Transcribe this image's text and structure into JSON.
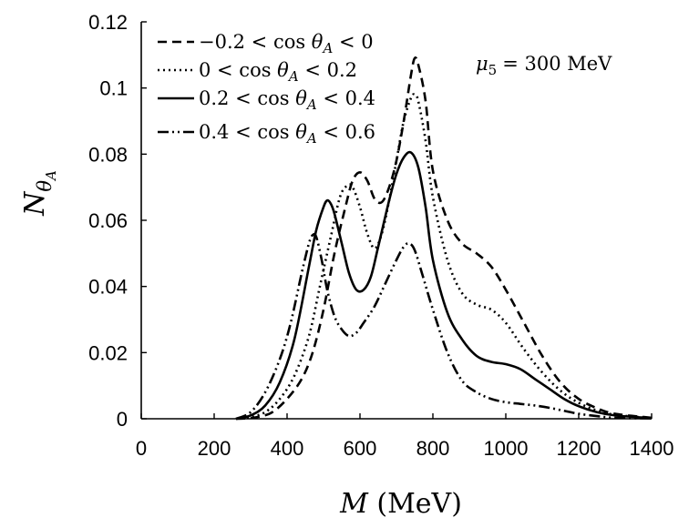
{
  "chart_data": {
    "type": "line",
    "title": "",
    "xlabel": {
      "symbol": "M",
      "unit": "(MeV)"
    },
    "ylabel": {
      "symbol": "N",
      "subscript": "θ",
      "subsubscript": "A"
    },
    "xlim": [
      0,
      1400
    ],
    "ylim": [
      0,
      0.12
    ],
    "xticks": [
      0,
      200,
      400,
      600,
      800,
      1000,
      1200,
      1400
    ],
    "xtick_labels": [
      "0",
      "200",
      "400",
      "600",
      "800",
      "1000",
      "1200",
      "1400"
    ],
    "yticks": [
      0,
      0.02,
      0.04,
      0.06,
      0.08,
      0.1,
      0.12
    ],
    "ytick_labels": [
      "0",
      "0.02",
      "0.04",
      "0.06",
      "0.08",
      "0.1",
      "0.12"
    ],
    "grid": false,
    "legend_position": "top-left",
    "annotation": {
      "symbol": "μ",
      "subscript": "5",
      "text": "= 300 MeV"
    },
    "series": [
      {
        "name": "−0.2 < cos θ_A < 0",
        "legend": {
          "pre": "−0.2 < cos ",
          "sub": "A",
          "post": " < 0"
        },
        "dash": "10,6",
        "x": [
          260,
          300,
          330,
          360,
          400,
          440,
          470,
          500,
          530,
          560,
          580,
          600,
          620,
          640,
          660,
          680,
          700,
          720,
          740,
          750,
          760,
          780,
          800,
          840,
          880,
          920,
          960,
          1000,
          1050,
          1100,
          1150,
          1200,
          1250,
          1300,
          1400
        ],
        "y": [
          0.0,
          0.0002,
          0.0008,
          0.002,
          0.006,
          0.012,
          0.02,
          0.033,
          0.05,
          0.064,
          0.072,
          0.0745,
          0.072,
          0.0665,
          0.0655,
          0.07,
          0.078,
          0.09,
          0.104,
          0.109,
          0.107,
          0.096,
          0.075,
          0.06,
          0.053,
          0.05,
          0.046,
          0.039,
          0.029,
          0.019,
          0.011,
          0.006,
          0.0032,
          0.0015,
          0.0003
        ]
      },
      {
        "name": "0 < cos θ_A < 0.2",
        "legend": {
          "pre": "0 < cos ",
          "sub": "A",
          "post": " < 0.2"
        },
        "dash": "2,4",
        "x": [
          260,
          300,
          340,
          380,
          420,
          460,
          490,
          520,
          545,
          565,
          580,
          600,
          620,
          640,
          660,
          680,
          700,
          720,
          740,
          750,
          760,
          780,
          800,
          840,
          880,
          920,
          960,
          1000,
          1050,
          1100,
          1150,
          1200,
          1250,
          1300,
          1400
        ],
        "y": [
          0.0,
          0.0005,
          0.002,
          0.006,
          0.013,
          0.025,
          0.04,
          0.055,
          0.067,
          0.0705,
          0.07,
          0.064,
          0.056,
          0.0515,
          0.056,
          0.066,
          0.078,
          0.09,
          0.097,
          0.098,
          0.096,
          0.084,
          0.067,
          0.048,
          0.038,
          0.0345,
          0.033,
          0.029,
          0.021,
          0.014,
          0.0085,
          0.0048,
          0.0025,
          0.0012,
          0.0002
        ]
      },
      {
        "name": "0.2 < cos θ_A < 0.4",
        "legend": {
          "pre": "0.2 < cos ",
          "sub": "A",
          "post": " < 0.4"
        },
        "dash": "",
        "x": [
          260,
          300,
          340,
          380,
          420,
          460,
          480,
          500,
          510,
          520,
          530,
          550,
          570,
          590,
          610,
          630,
          650,
          680,
          700,
          720,
          740,
          760,
          780,
          800,
          840,
          880,
          920,
          960,
          1000,
          1040,
          1080,
          1120,
          1160,
          1200,
          1250,
          1300,
          1400
        ],
        "y": [
          0.0,
          0.001,
          0.004,
          0.011,
          0.024,
          0.046,
          0.057,
          0.064,
          0.066,
          0.065,
          0.062,
          0.053,
          0.044,
          0.039,
          0.039,
          0.043,
          0.052,
          0.066,
          0.074,
          0.079,
          0.0805,
          0.076,
          0.064,
          0.048,
          0.032,
          0.024,
          0.019,
          0.0172,
          0.0165,
          0.015,
          0.012,
          0.009,
          0.006,
          0.0038,
          0.002,
          0.001,
          0.0002
        ]
      },
      {
        "name": "0.4 < cos θ_A < 0.6",
        "legend": {
          "pre": "0.4 < cos ",
          "sub": "A",
          "post": " < 0.6"
        },
        "dash": "12,4,2,4,2,4",
        "x": [
          260,
          300,
          340,
          380,
          410,
          440,
          460,
          470,
          480,
          495,
          510,
          530,
          550,
          570,
          590,
          610,
          640,
          670,
          700,
          720,
          735,
          750,
          770,
          800,
          840,
          880,
          920,
          960,
          1000,
          1040,
          1080,
          1120,
          1160,
          1200,
          1250,
          1300,
          1400
        ],
        "y": [
          0.0,
          0.002,
          0.008,
          0.018,
          0.029,
          0.044,
          0.053,
          0.0555,
          0.055,
          0.048,
          0.039,
          0.031,
          0.027,
          0.025,
          0.026,
          0.029,
          0.034,
          0.041,
          0.048,
          0.052,
          0.053,
          0.051,
          0.044,
          0.033,
          0.02,
          0.0115,
          0.008,
          0.006,
          0.005,
          0.0045,
          0.004,
          0.0033,
          0.0024,
          0.0015,
          0.0008,
          0.0003,
          0.0001
        ]
      }
    ]
  }
}
